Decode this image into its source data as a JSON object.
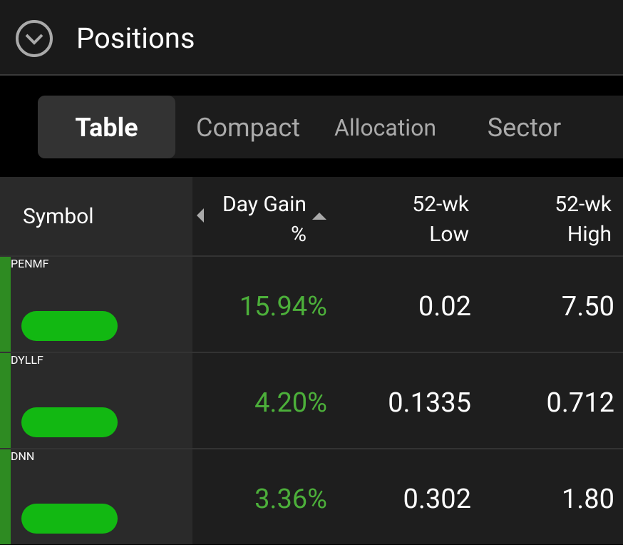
{
  "header": {
    "title": "Positions"
  },
  "tabs": [
    "Table",
    "Compact",
    "Allocation",
    "Sector"
  ],
  "table": {
    "columns": [
      "Symbol",
      "Day Gain %",
      "52-wk Low",
      "52-wk High"
    ],
    "rows": [
      [
        "PENMF",
        "15.94%",
        "0.02",
        "7.50"
      ],
      [
        "DYLLF",
        "4.20%",
        "0.1335",
        "0.712"
      ],
      [
        "DNN",
        "3.36%",
        "0.302",
        "1.80"
      ]
    ]
  }
}
